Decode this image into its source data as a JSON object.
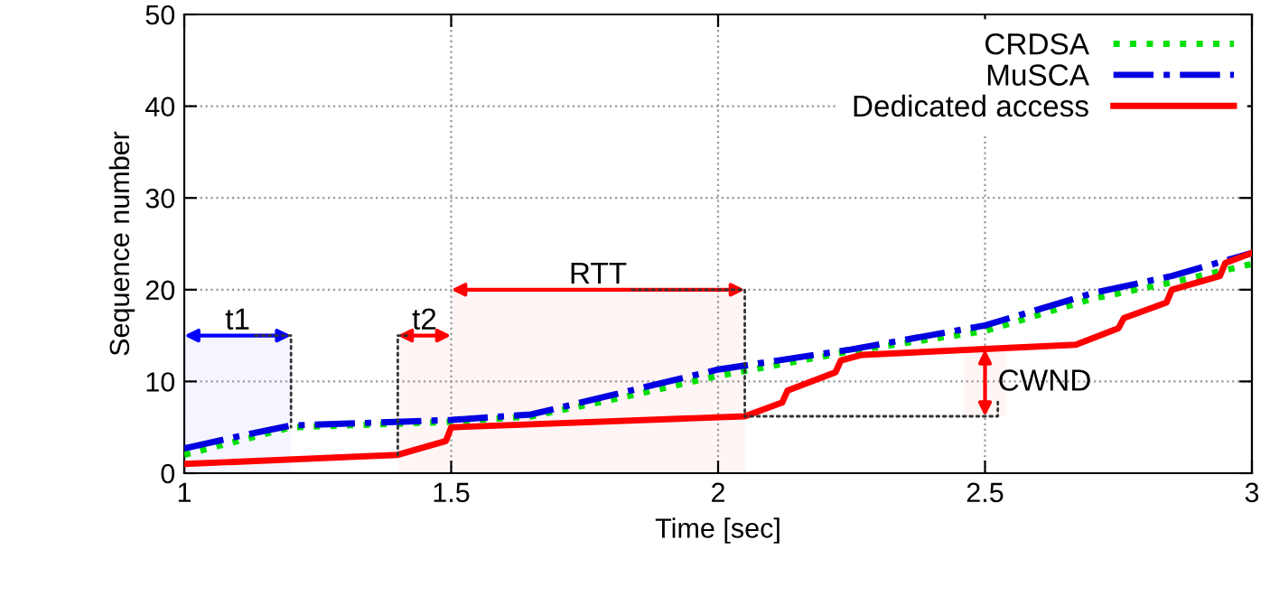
{
  "chart_data": {
    "type": "line",
    "xlabel": "Time [sec]",
    "ylabel": "Sequence number",
    "xlim": [
      1,
      3
    ],
    "xticks": [
      1,
      1.5,
      2,
      2.5,
      3
    ],
    "ylim": [
      0,
      50
    ],
    "yticks": [
      0,
      10,
      20,
      30,
      40,
      50
    ],
    "grid": true,
    "legend": "top right",
    "series": [
      {
        "name": "CRDSA",
        "color": "#00e000",
        "line_style": "dotted",
        "x": [
          1,
          1.1,
          1.2,
          1.35,
          1.5,
          1.65,
          1.8,
          2.0,
          2.25,
          2.5,
          2.7,
          2.85,
          3
        ],
        "values": [
          2,
          3.5,
          5,
          5.3,
          5.6,
          6.2,
          8,
          10.6,
          13.3,
          15.5,
          19,
          20.8,
          22.8
        ]
      },
      {
        "name": "MuSCA",
        "color": "#0000e0",
        "line_style": "dashdot",
        "x": [
          1,
          1.1,
          1.2,
          1.35,
          1.5,
          1.65,
          1.8,
          2.0,
          2.25,
          2.5,
          2.7,
          2.85,
          3
        ],
        "values": [
          2.7,
          4,
          5.2,
          5.5,
          5.8,
          6.4,
          8.5,
          11.3,
          13.5,
          16.1,
          19.6,
          21.5,
          24
        ]
      },
      {
        "name": "Dedicated access",
        "color": "#ff0000",
        "line_style": "solid",
        "x": [
          1,
          1.4,
          1.49,
          1.5,
          2.05,
          2.12,
          2.13,
          2.22,
          2.23,
          2.27,
          2.67,
          2.75,
          2.76,
          2.84,
          2.85,
          2.94,
          2.95,
          3
        ],
        "values": [
          1,
          2,
          3.5,
          5,
          6.2,
          7.7,
          9,
          11,
          12.3,
          12.9,
          14,
          15.8,
          16.9,
          18.6,
          20,
          21.5,
          22.9,
          24
        ]
      }
    ],
    "bands": [
      {
        "axis": "x",
        "from": 1,
        "to": 1.2,
        "color": "#0000ff"
      },
      {
        "axis": "x",
        "from": 1.4,
        "to": 1.5,
        "color": "#ff0000"
      },
      {
        "axis": "x",
        "from": 1.5,
        "to": 2.05,
        "color": "#ff0000"
      },
      {
        "axis": "y",
        "from": 6.2,
        "to": 13.5,
        "color": "#ff0000"
      }
    ],
    "annotations": [
      {
        "text": "t1",
        "x": 1.2,
        "y": 5
      },
      {
        "text": "t2",
        "x": 1.4,
        "y": 2
      },
      {
        "text": "RTT",
        "x": 2.05,
        "y": 6.2
      },
      {
        "text": "CWND",
        "x": 2.05,
        "y": 6.2
      }
    ]
  }
}
